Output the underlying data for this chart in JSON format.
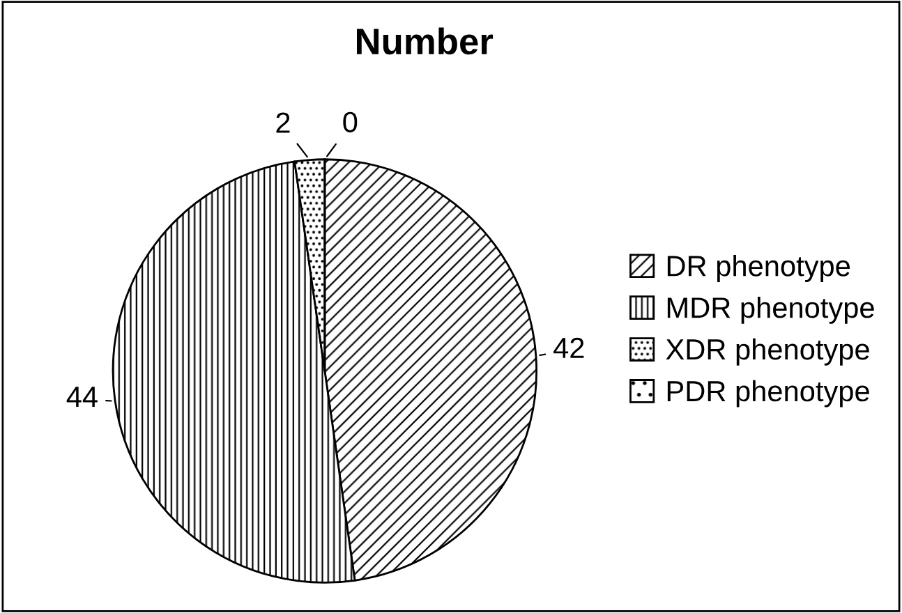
{
  "chart_data": {
    "type": "pie",
    "title": "Number",
    "categories": [
      "DR phenotype",
      "MDR phenotype",
      "XDR phenotype",
      "PDR phenotype"
    ],
    "values": [
      42,
      44,
      2,
      0
    ],
    "colors": [
      "#000000",
      "#000000",
      "#000000",
      "#000000"
    ],
    "value_labels": [
      "42",
      "44",
      "2",
      "0"
    ],
    "legend": "right"
  }
}
